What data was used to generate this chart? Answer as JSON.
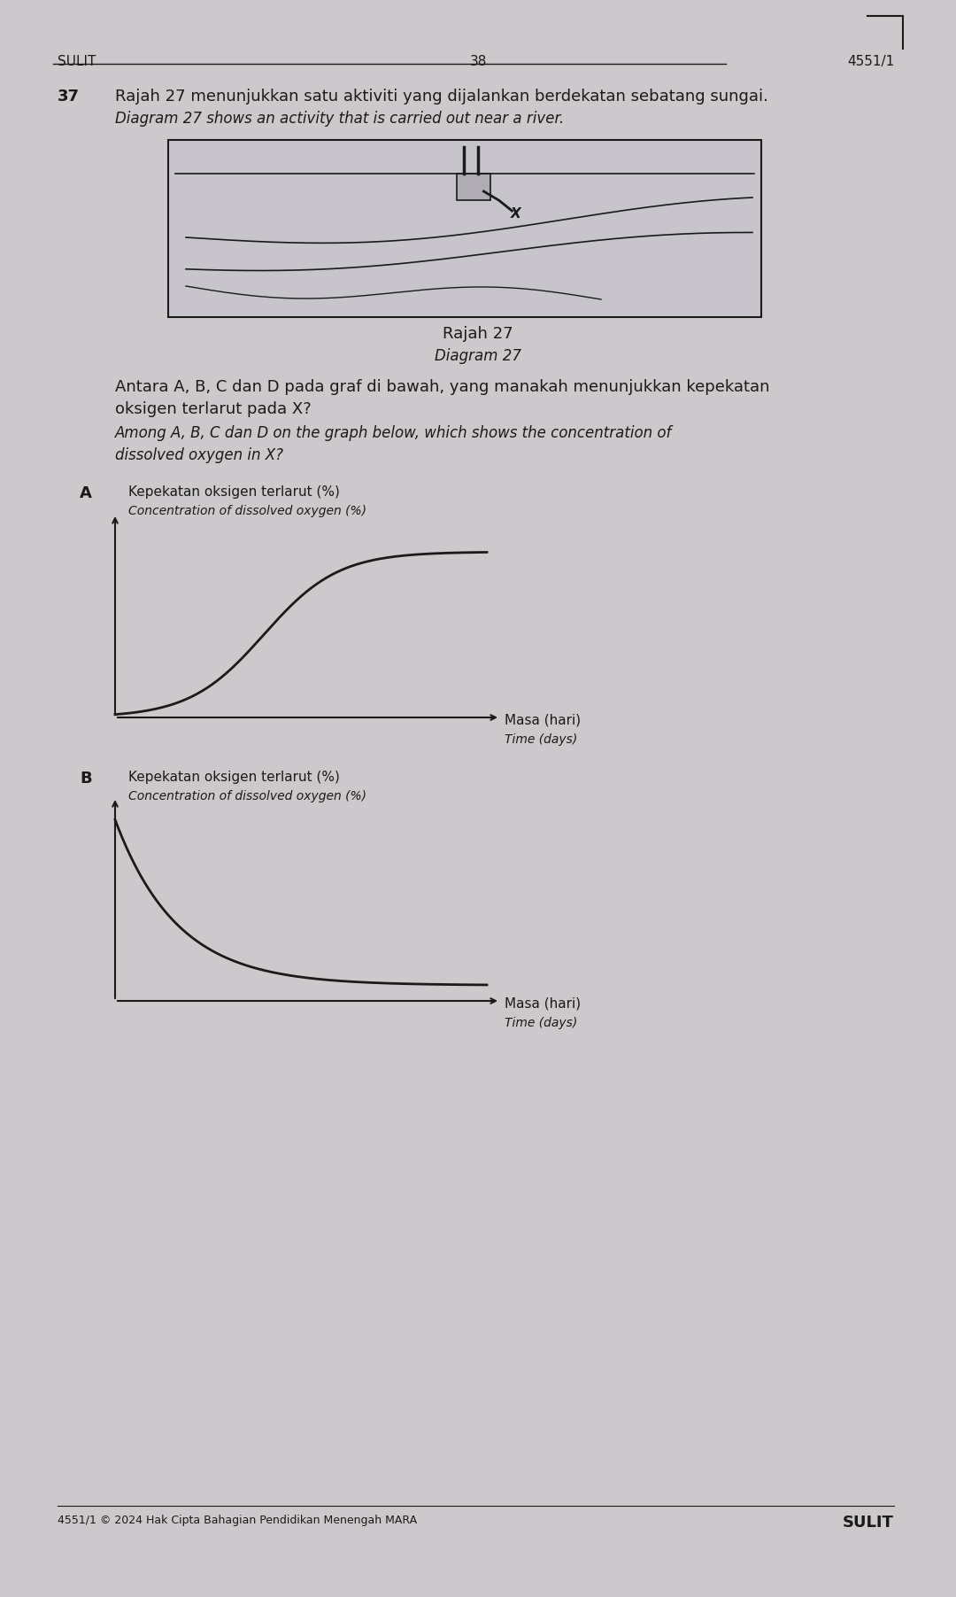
{
  "page_header_left": "SULIT",
  "page_header_center": "38",
  "page_header_right": "4551/1",
  "question_number": "37",
  "question_malay": "Rajah 27 menunjukkan satu aktiviti yang dijalankan berdekatan sebatang sungai.",
  "question_english": "Diagram 27 shows an activity that is carried out near a river.",
  "diagram_caption_malay": "Rajah 27",
  "diagram_caption_english": "Diagram 27",
  "question_part2_malay_1": "Antara A, B, C dan D pada graf di bawah, yang manakah menunjukkan kepekatan",
  "question_part2_malay_2": "oksigen terlarut pada X?",
  "question_part2_english_1": "Among A, B, C dan D on the graph below, which shows the concentration of",
  "question_part2_english_2": "dissolved oxygen in X?",
  "option_A_label": "A",
  "option_A_ylabel_malay": "Kepekatan oksigen terlarut (%)",
  "option_A_ylabel_english": "Concentration of dissolved oxygen (%)",
  "option_A_xlabel_malay": "Masa (hari)",
  "option_A_xlabel_english": "Time (days)",
  "option_B_label": "B",
  "option_B_ylabel_malay": "Kepekatan oksigen terlarut (%)",
  "option_B_ylabel_english": "Concentration of dissolved oxygen (%)",
  "option_B_xlabel_malay": "Masa (hari)",
  "option_B_xlabel_english": "Time (days)",
  "footer_left": "4551/1 © 2024 Hak Cipta Bahagian Pendidikan Menengah MARA",
  "footer_right": "SULIT",
  "page_bg": "#ccc8cc",
  "text_color": "#1a1a1a",
  "curve_color": "#1a1a1a"
}
